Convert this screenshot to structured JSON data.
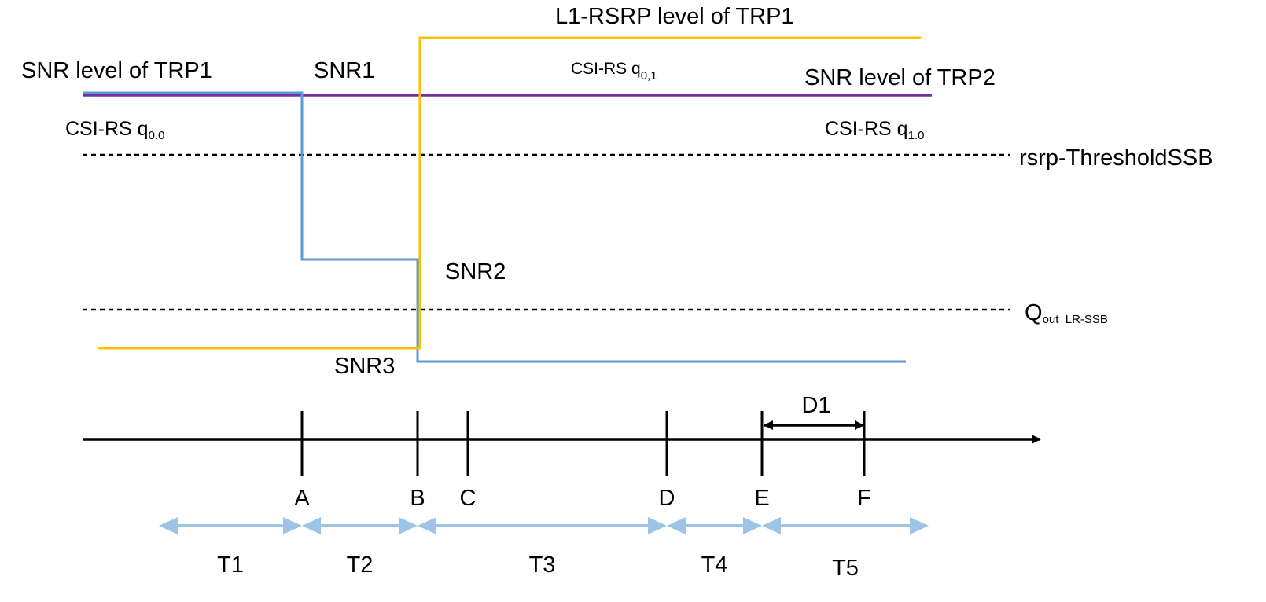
{
  "labels": {
    "snr_trp1": "SNR level of TRP1",
    "snr1": "SNR1",
    "l1_rsrp_trp1": "L1-RSRP level of TRP1",
    "csi_rs_prefix": "CSI-RS q",
    "csi_rs_q01_sub": "0,1",
    "csi_rs_q00_sub": "0.0",
    "csi_rs_q10_sub": "1.0",
    "snr_trp2": "SNR level of TRP2",
    "rsrp_threshold": "rsrp-ThresholdSSB",
    "snr2": "SNR2",
    "q_out_main": "Q",
    "q_out_sub": "out_LR-SSB",
    "snr3": "SNR3",
    "d1": "D1"
  },
  "time_points": [
    "A",
    "B",
    "C",
    "D",
    "E",
    "F"
  ],
  "periods": [
    "T1",
    "T2",
    "T3",
    "T4",
    "T5"
  ],
  "colors": {
    "trp1_snr": "#5b9bd5",
    "trp2_snr": "#7030a0",
    "l1_rsrp": "#ffc000",
    "period_arrow": "#9dc3e6",
    "axis": "#000000"
  }
}
